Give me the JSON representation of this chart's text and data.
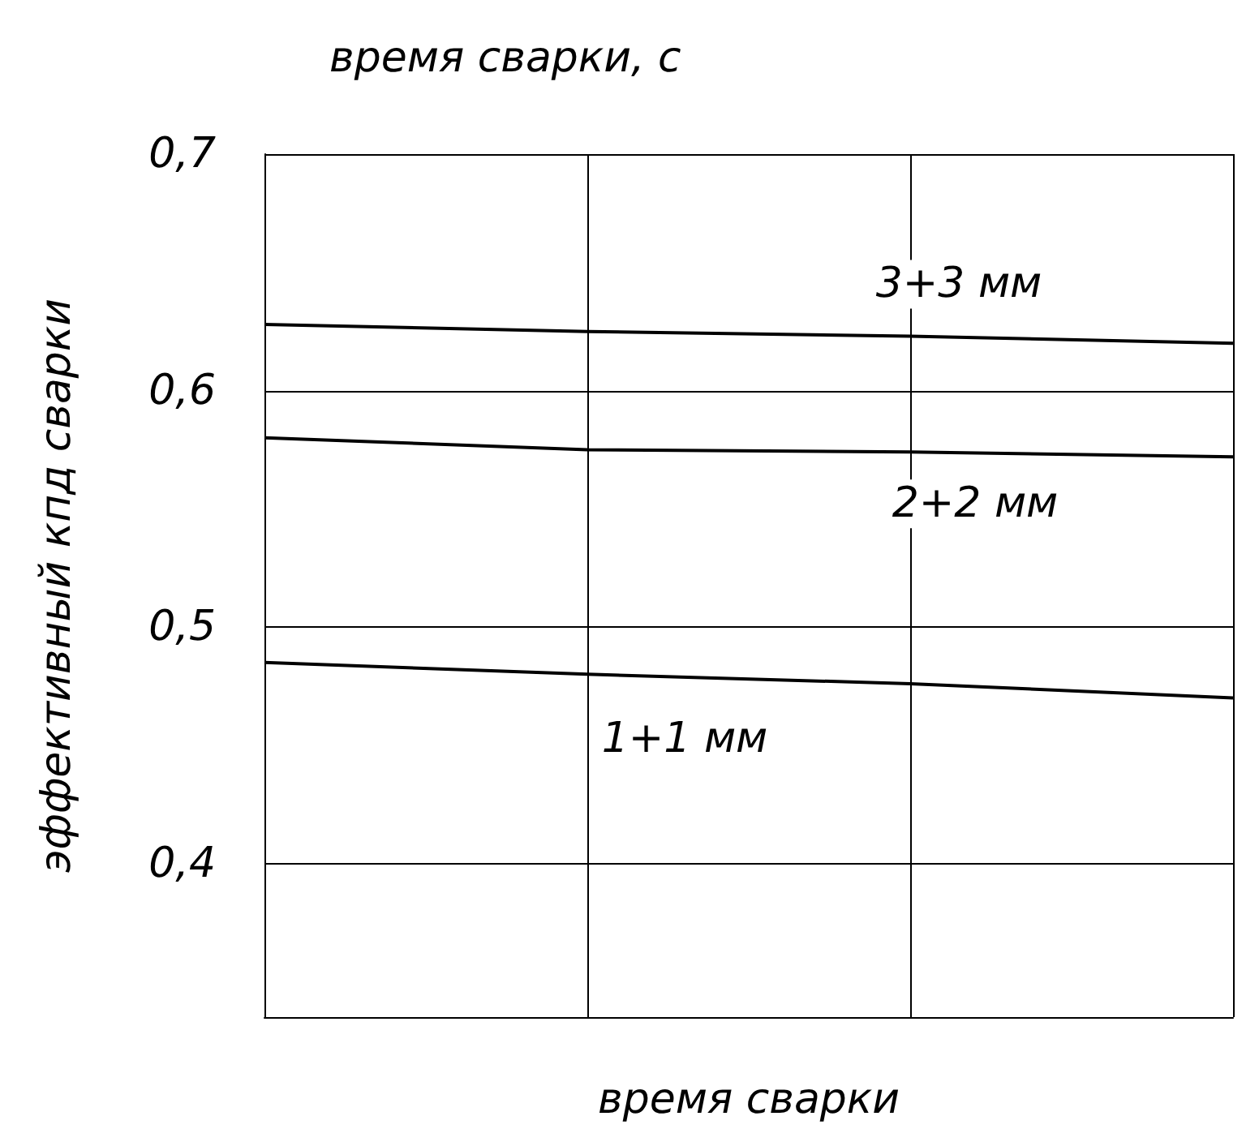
{
  "chart_data": {
    "type": "line",
    "title": "время сварки, с",
    "xlabel": "время сварки",
    "ylabel": "эффективный кпд сварки",
    "categories": [
      null,
      null,
      null,
      null
    ],
    "series": [
      {
        "name": "3+3 мм",
        "color": "#000000",
        "values": [
          0.628,
          0.625,
          0.623,
          0.62
        ]
      },
      {
        "name": "2+2 мм",
        "color": "#000000",
        "values": [
          0.58,
          0.575,
          0.574,
          0.572
        ]
      },
      {
        "name": "1+1 мм",
        "color": "#000000",
        "values": [
          0.485,
          0.48,
          0.476,
          0.47
        ]
      }
    ],
    "ylim": [
      0.335,
      0.7
    ],
    "yticks": [
      {
        "value": 0.4,
        "label": "0,4"
      },
      {
        "value": 0.5,
        "label": "0,5"
      },
      {
        "value": 0.6,
        "label": "0,6"
      },
      {
        "value": 0.7,
        "label": "0,7"
      }
    ],
    "grid": true,
    "marker": "none",
    "line_style": "solid"
  }
}
